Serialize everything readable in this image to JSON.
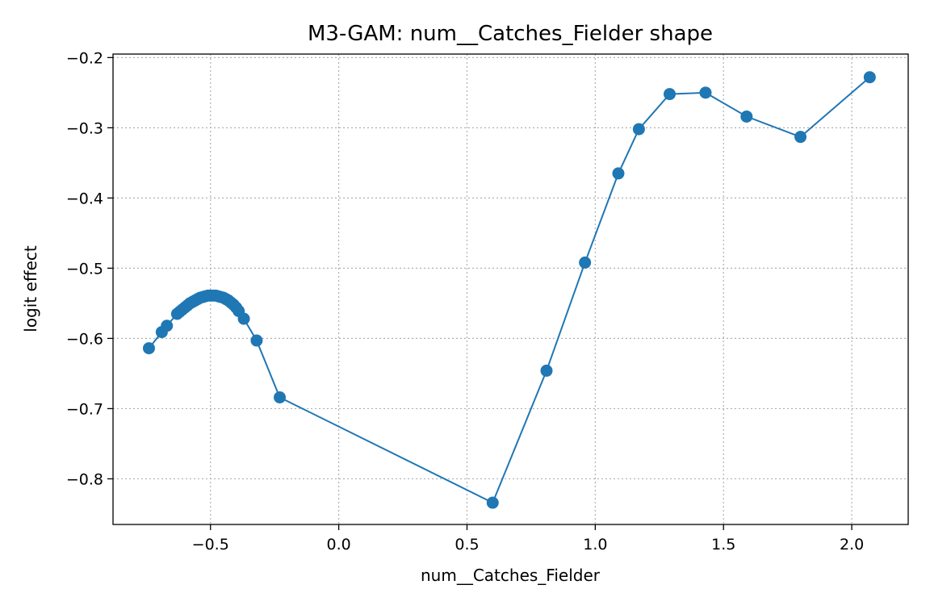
{
  "chart_data": {
    "type": "line",
    "title": "M3-GAM: num__Catches_Fielder shape",
    "xlabel": "num__Catches_Fielder",
    "ylabel": "logit effect",
    "xlim": [
      -0.88,
      2.22
    ],
    "ylim": [
      -0.865,
      -0.195
    ],
    "xticks": [
      -0.5,
      0.0,
      0.5,
      1.0,
      1.5,
      2.0
    ],
    "xtick_labels": [
      "−0.5",
      "0.0",
      "0.5",
      "1.0",
      "1.5",
      "2.0"
    ],
    "yticks": [
      -0.2,
      -0.3,
      -0.4,
      -0.5,
      -0.6,
      -0.7,
      -0.8
    ],
    "ytick_labels": [
      "−0.2",
      "−0.3",
      "−0.4",
      "−0.5",
      "−0.6",
      "−0.7",
      "−0.8"
    ],
    "grid": true,
    "color": "#1f77b4",
    "series": [
      {
        "x": [
          -0.74,
          -0.69,
          -0.67,
          -0.63,
          -0.62,
          -0.61,
          -0.6,
          -0.59,
          -0.58,
          -0.57,
          -0.56,
          -0.55,
          -0.54,
          -0.53,
          -0.52,
          -0.51,
          -0.5,
          -0.49,
          -0.48,
          -0.47,
          -0.46,
          -0.45,
          -0.44,
          -0.43,
          -0.42,
          -0.41,
          -0.4,
          -0.39,
          -0.37,
          -0.32,
          -0.23,
          0.6,
          0.81,
          0.96,
          1.09,
          1.17,
          1.29,
          1.43,
          1.59,
          1.8,
          2.07
        ],
        "y": [
          -0.614,
          -0.591,
          -0.582,
          -0.565,
          -0.562,
          -0.559,
          -0.556,
          -0.553,
          -0.55,
          -0.548,
          -0.546,
          -0.544,
          -0.542,
          -0.541,
          -0.54,
          -0.539,
          -0.539,
          -0.539,
          -0.539,
          -0.54,
          -0.541,
          -0.542,
          -0.544,
          -0.546,
          -0.549,
          -0.552,
          -0.556,
          -0.561,
          -0.572,
          -0.603,
          -0.684,
          -0.834,
          -0.646,
          -0.492,
          -0.365,
          -0.302,
          -0.252,
          -0.25,
          -0.284,
          -0.313,
          -0.228
        ]
      }
    ]
  }
}
